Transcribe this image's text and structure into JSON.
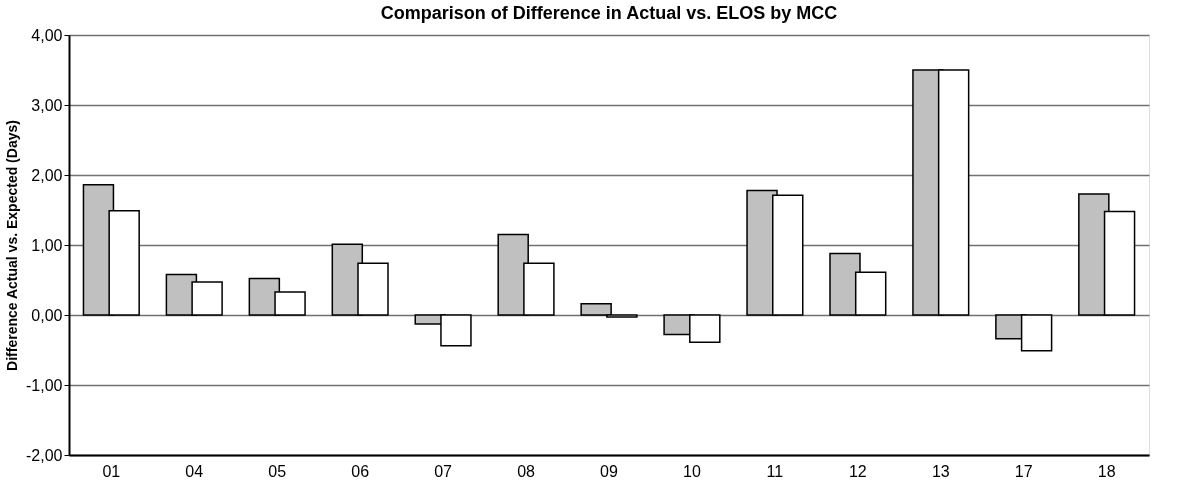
{
  "chart_data": {
    "type": "bar",
    "title": "Comparison of Difference in Actual vs. ELOS by MCC",
    "ylabel": "Difference Actual vs. Expected (Days)",
    "categories": [
      "01",
      "04",
      "05",
      "06",
      "07",
      "08",
      "09",
      "10",
      "11",
      "12",
      "13",
      "17",
      "18"
    ],
    "series": [
      {
        "color": "#c0c0c0",
        "values": [
          1.86,
          0.58,
          0.52,
          1.01,
          -0.13,
          1.15,
          0.16,
          -0.28,
          1.78,
          0.88,
          3.5,
          -0.34,
          1.73
        ]
      },
      {
        "color": "#ffffff",
        "values": [
          1.49,
          0.47,
          0.33,
          0.74,
          -0.44,
          0.74,
          -0.03,
          -0.39,
          1.71,
          0.61,
          3.5,
          -0.51,
          1.48
        ]
      }
    ],
    "ylim": [
      -2,
      4
    ],
    "yticks": [
      {
        "value": -2,
        "label": "-2,00"
      },
      {
        "value": -1,
        "label": "-1,00"
      },
      {
        "value": 0,
        "label": "0,00"
      },
      {
        "value": 1,
        "label": "1,00"
      },
      {
        "value": 2,
        "label": "2,00"
      },
      {
        "value": 3,
        "label": "3,00"
      },
      {
        "value": 4,
        "label": "4,00"
      }
    ],
    "grid": "y",
    "legend": false
  }
}
